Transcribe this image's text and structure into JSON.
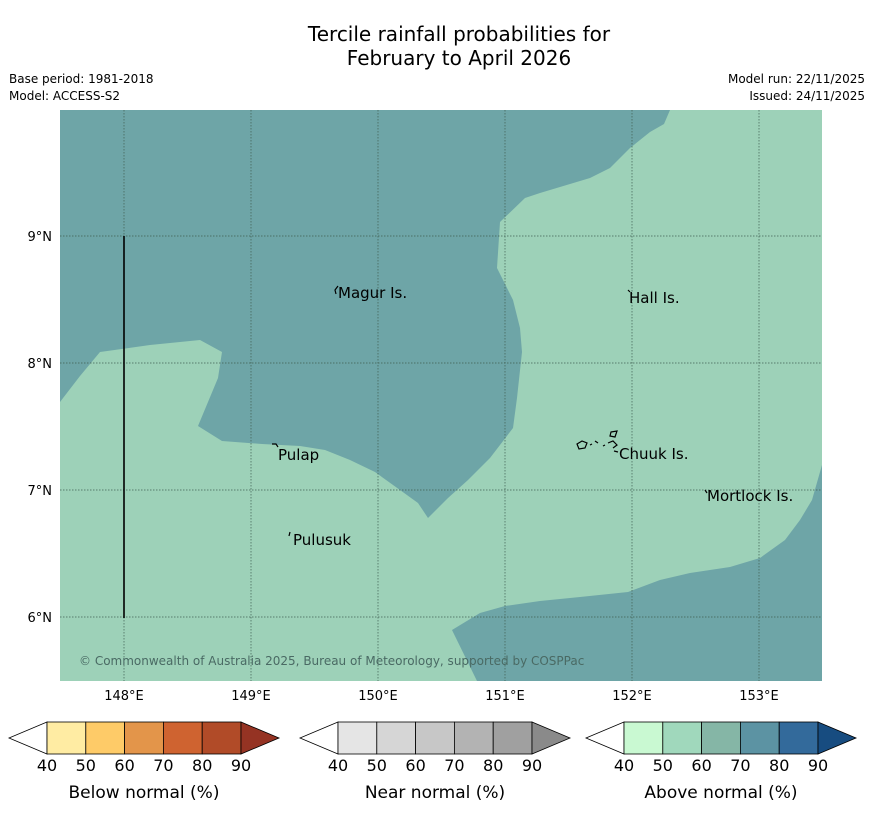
{
  "title": {
    "line1": "Tercile rainfall probabilities for",
    "line2": "February to April 2026"
  },
  "meta": {
    "base_period": "Base period: 1981-2018",
    "model": "Model: ACCESS-S2",
    "model_run": "Model run: 22/11/2025",
    "issued": "Issued: 24/11/2025"
  },
  "map": {
    "lon_ticks": [
      "148°E",
      "149°E",
      "150°E",
      "151°E",
      "152°E",
      "153°E"
    ],
    "lat_ticks": [
      "9°N",
      "8°N",
      "7°N",
      "6°N"
    ],
    "places": {
      "magur": "Magur Is.",
      "hall": "Hall Is.",
      "pulap": "Pulap",
      "chuuk": "Chuuk Is.",
      "mortlock": "Mortlock Is.",
      "pulusuk": "Pulusuk"
    },
    "copyright": "© Commonwealth of Australia 2025, Bureau of Meteorology, supported by COSPPac",
    "colors": {
      "above_50_60": "#9dd1b8",
      "above_60_70": "#6ea5a7",
      "grid": "#3f5f52",
      "coast": "#000000"
    }
  },
  "legends": {
    "ticks": [
      "40",
      "50",
      "60",
      "70",
      "80",
      "90"
    ],
    "below": {
      "label": "Below normal (%)",
      "colors": [
        "#ffffff",
        "#ffeca3",
        "#fecb68",
        "#e3954a",
        "#cf6330",
        "#b14b28",
        "#953323"
      ]
    },
    "near": {
      "label": "Near normal (%)",
      "colors": [
        "#ffffff",
        "#e5e5e5",
        "#d6d6d6",
        "#c7c7c7",
        "#b3b3b3",
        "#a0a0a0",
        "#8a8a8a"
      ]
    },
    "above": {
      "label": "Above normal (%)",
      "colors": [
        "#ffffff",
        "#c9f9d2",
        "#a0d8bc",
        "#85b6a6",
        "#5c93a3",
        "#336a9b",
        "#174c80"
      ]
    }
  }
}
